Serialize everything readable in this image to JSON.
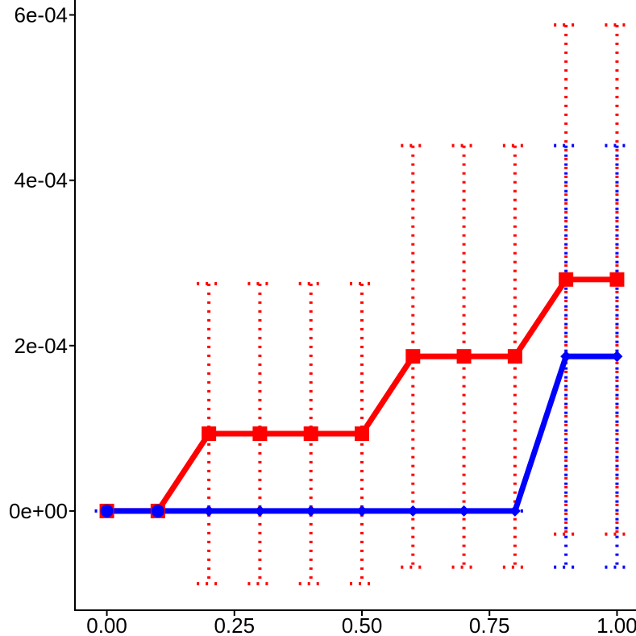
{
  "chart_data": {
    "type": "line",
    "title": "",
    "xlabel": "",
    "ylabel": "",
    "xlim": [
      -0.0625,
      1.0625
    ],
    "ylim": [
      -0.00012,
      0.00062
    ],
    "x_ticks": [
      {
        "value": 0.0,
        "label": "0.00"
      },
      {
        "value": 0.25,
        "label": "0.25"
      },
      {
        "value": 0.5,
        "label": "0.50"
      },
      {
        "value": 0.75,
        "label": "0.75"
      },
      {
        "value": 1.0,
        "label": "1.00"
      }
    ],
    "y_ticks": [
      {
        "value": 0.0,
        "label": "0e+00"
      },
      {
        "value": 0.0002,
        "label": "2e-04"
      },
      {
        "value": 0.0004,
        "label": "4e-04"
      },
      {
        "value": 0.0006,
        "label": "6e-04"
      }
    ],
    "grid": false,
    "x": [
      0.0,
      0.1,
      0.2,
      0.3,
      0.4,
      0.5,
      0.6,
      0.7,
      0.8,
      0.9,
      1.0
    ],
    "series": [
      {
        "color": "#ff0000",
        "marker": "square",
        "values": [
          0,
          0,
          9.35e-05,
          9.35e-05,
          9.35e-05,
          9.35e-05,
          0.000187,
          0.000187,
          0.000187,
          0.00028,
          0.00028
        ],
        "error_low": [
          null,
          null,
          -8.8e-05,
          -8.8e-05,
          -8.8e-05,
          -8.8e-05,
          -6.8e-05,
          -6.8e-05,
          -6.8e-05,
          -2.8e-05,
          -2.8e-05
        ],
        "error_high": [
          null,
          null,
          0.000275,
          0.000275,
          0.000275,
          0.000275,
          0.000442,
          0.000442,
          0.000442,
          0.000588,
          0.000588
        ]
      },
      {
        "color": "#0000ff",
        "marker": "diamond",
        "values": [
          0,
          0,
          0,
          0,
          0,
          0,
          0,
          0,
          0,
          0.000187,
          0.000187
        ],
        "error_low": [
          0,
          null,
          null,
          null,
          null,
          null,
          null,
          null,
          0,
          -6.8e-05,
          -6.8e-05
        ],
        "error_high": [
          0,
          null,
          null,
          null,
          null,
          null,
          null,
          null,
          0,
          0.000442,
          0.000442
        ]
      }
    ]
  }
}
